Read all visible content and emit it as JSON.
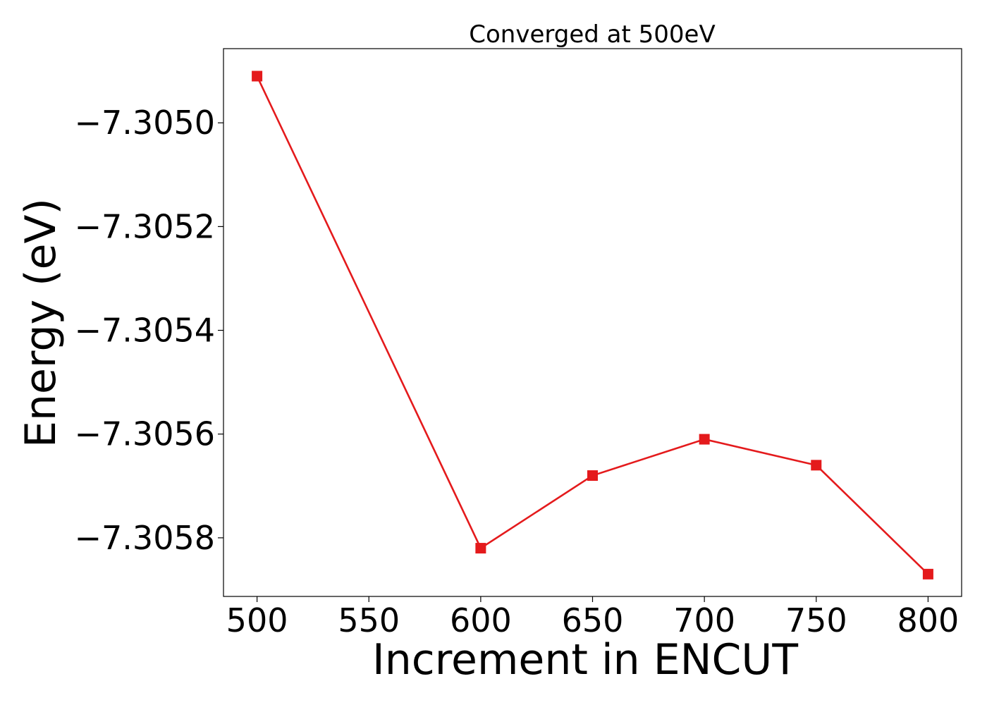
{
  "chart_data": {
    "type": "line",
    "title": "Converged at 500eV",
    "xlabel": "Increment in ENCUT",
    "ylabel": "Energy (eV)",
    "x": [
      500,
      600,
      650,
      700,
      750,
      800
    ],
    "series": [
      {
        "values": [
          -7.30491,
          -7.30582,
          -7.30568,
          -7.30561,
          -7.30566,
          -7.30587
        ],
        "color": "#e41a1c",
        "marker": "square"
      }
    ],
    "xlim": [
      485,
      815
    ],
    "ylim": [
      -7.305913,
      -7.304857
    ],
    "x_ticks": [
      500,
      550,
      600,
      650,
      700,
      750,
      800
    ],
    "x_tick_labels": [
      "500",
      "550",
      "600",
      "650",
      "700",
      "750",
      "800"
    ],
    "y_ticks": [
      -7.305,
      -7.3052,
      -7.3054,
      -7.3056,
      -7.3058
    ],
    "y_tick_labels": [
      "−7.3050",
      "−7.3052",
      "−7.3054",
      "−7.3056",
      "−7.3058"
    ],
    "grid": false,
    "legend": "none"
  }
}
